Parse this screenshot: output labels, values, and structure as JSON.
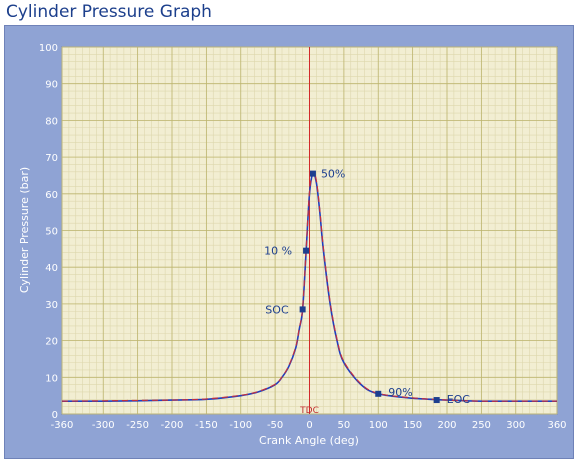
{
  "title": "Cylinder Pressure Graph",
  "chart_data": {
    "type": "line",
    "title": "Cylinder Pressure Graph",
    "xlabel": "Crank Angle (deg)",
    "ylabel": "Cylinder Pressure (bar)",
    "xlim": [
      -360,
      360
    ],
    "ylim": [
      0,
      100
    ],
    "x_ticks": [
      "-360",
      "-300",
      "-250",
      "-200",
      "-150",
      "-100",
      "-50",
      "0",
      "50",
      "100",
      "150",
      "200",
      "250",
      "300",
      "360"
    ],
    "y_ticks": [
      "0",
      "10",
      "20",
      "30",
      "40",
      "50",
      "60",
      "70",
      "80",
      "90",
      "100"
    ],
    "grid": true,
    "tdc_label": "TDC",
    "series": [
      {
        "color": "#1f3fbf",
        "x": [
          -360,
          -300,
          -250,
          -200,
          -150,
          -100,
          -75,
          -50,
          -40,
          -30,
          -20,
          -15,
          -10,
          -5,
          0,
          5,
          10,
          15,
          20,
          30,
          40,
          50,
          75,
          100,
          150,
          200,
          250,
          300,
          360
        ],
        "y": [
          3.5,
          3.5,
          3.6,
          3.8,
          4.0,
          5.0,
          6.0,
          8.0,
          10.0,
          13.0,
          18.0,
          23.0,
          28.5,
          44.0,
          60.0,
          65.5,
          63.0,
          55.0,
          45.0,
          30.0,
          20.0,
          14.0,
          8.0,
          5.5,
          4.3,
          3.8,
          3.5,
          3.5,
          3.5
        ]
      },
      {
        "color": "#c03040",
        "x": [
          -360,
          -300,
          -250,
          -200,
          -150,
          -100,
          -75,
          -50,
          -40,
          -30,
          -20,
          -15,
          -10,
          -5,
          0,
          5,
          10,
          15,
          20,
          30,
          40,
          50,
          75,
          100,
          150,
          200,
          250,
          300,
          360
        ],
        "y": [
          3.5,
          3.6,
          3.7,
          3.8,
          4.1,
          5.1,
          6.1,
          8.1,
          10.1,
          13.2,
          18.3,
          23.2,
          28.8,
          44.5,
          60.5,
          65.8,
          63.6,
          55.5,
          45.6,
          30.5,
          20.4,
          14.3,
          8.2,
          5.6,
          4.4,
          3.8,
          3.5,
          3.5,
          3.5
        ]
      }
    ],
    "markers": [
      {
        "label": "SOC",
        "x": -10,
        "y": 28.5
      },
      {
        "label": "10 %",
        "x": -5,
        "y": 44.5
      },
      {
        "label": "50%",
        "x": 5,
        "y": 65.5
      },
      {
        "label": "90%",
        "x": 100,
        "y": 5.5
      },
      {
        "label": "EOC",
        "x": 185,
        "y": 3.8
      }
    ]
  }
}
